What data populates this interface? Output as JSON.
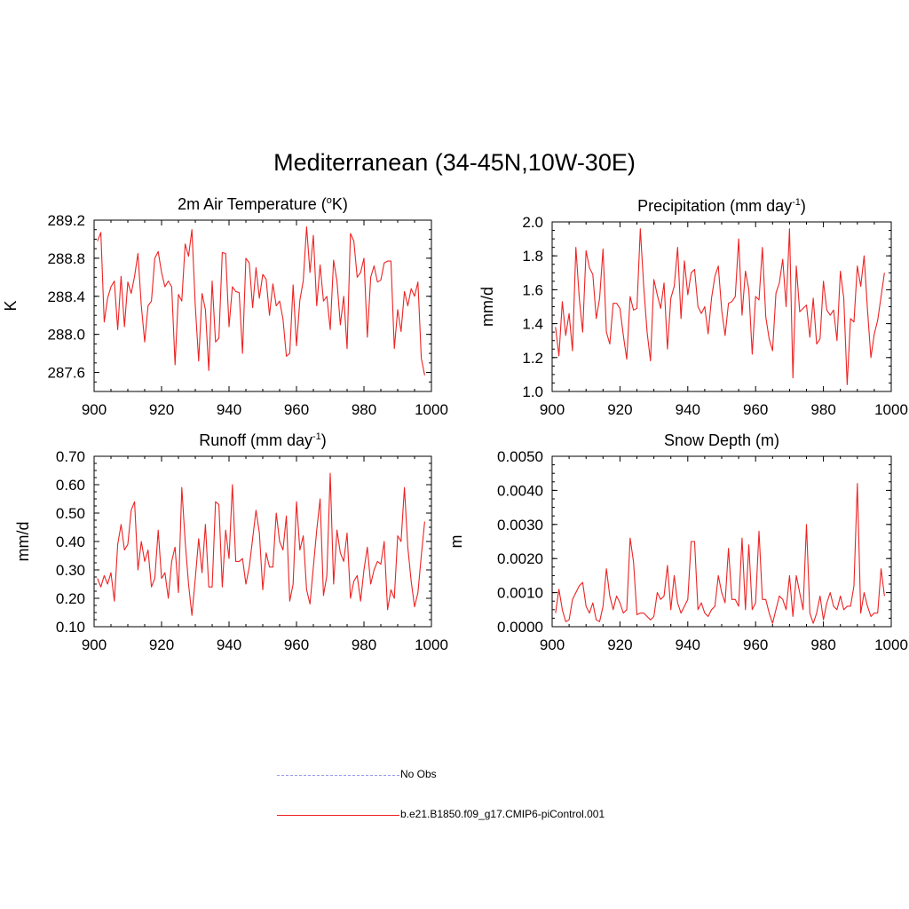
{
  "figure": {
    "title": "Mediterranean (34-45N,10W-30E)"
  },
  "legend": {
    "obs_label": "No Obs",
    "model_label": "b.e21.B1850.f09_g17.CMIP6-piControl.001",
    "obs_color": "#9a9aee",
    "model_color": "#ee2222"
  },
  "chart_data": [
    {
      "id": "temperature",
      "type": "line",
      "title": "2m Air Temperature (°K)",
      "title_main": "2m Air Temperature (",
      "title_sup": "o",
      "title_end": "K)",
      "xlabel": "",
      "ylabel": "K",
      "xlim": [
        900,
        1000
      ],
      "ylim": [
        287.4,
        289.2
      ],
      "xticks": [
        900,
        920,
        940,
        960,
        980,
        1000
      ],
      "yticks": [
        287.6,
        288.0,
        288.4,
        288.8,
        289.2
      ],
      "ytick_labels": [
        "287.6",
        "288.0",
        "288.4",
        "288.8",
        "289.2"
      ],
      "series": [
        {
          "name": "b.e21.B1850.f09_g17.CMIP6-piControl.001",
          "x_start": 901,
          "values": [
            288.98,
            289.07,
            288.13,
            288.38,
            288.5,
            288.56,
            288.05,
            288.61,
            288.08,
            288.55,
            288.43,
            288.61,
            288.85,
            288.3,
            287.92,
            288.3,
            288.35,
            288.8,
            288.87,
            288.65,
            288.5,
            288.56,
            288.5,
            287.68,
            288.42,
            288.35,
            288.95,
            288.82,
            289.1,
            288.3,
            287.72,
            288.43,
            288.26,
            287.62,
            288.56,
            287.92,
            287.96,
            288.86,
            288.85,
            288.08,
            288.5,
            288.45,
            288.44,
            287.8,
            288.8,
            288.75,
            288.28,
            288.7,
            288.38,
            288.63,
            288.58,
            288.2,
            288.53,
            288.3,
            288.35,
            288.16,
            287.77,
            287.8,
            288.52,
            287.88,
            288.36,
            288.56,
            289.13,
            288.65,
            289.04,
            288.3,
            288.73,
            288.35,
            288.4,
            288.05,
            288.78,
            288.56,
            288.1,
            288.4,
            287.85,
            289.06,
            288.98,
            288.6,
            288.65,
            288.8,
            287.97,
            288.6,
            288.72,
            288.55,
            288.57,
            288.75,
            288.77,
            288.77,
            287.85,
            288.26,
            288.03,
            288.45,
            288.3,
            288.48,
            288.4,
            288.55,
            287.75,
            287.57
          ]
        }
      ]
    },
    {
      "id": "precipitation",
      "type": "line",
      "title": "Precipitation (mm day-1)",
      "title_main": "Precipitation (mm day",
      "title_sup": "-1",
      "title_end": ")",
      "xlabel": "",
      "ylabel": "mm/d",
      "xlim": [
        900,
        1000
      ],
      "ylim": [
        1.0,
        2.0
      ],
      "xticks": [
        900,
        920,
        940,
        960,
        980,
        1000
      ],
      "yticks": [
        1.0,
        1.2,
        1.4,
        1.6,
        1.8,
        2.0
      ],
      "ytick_labels": [
        "1.0",
        "1.2",
        "1.4",
        "1.6",
        "1.8",
        "2.0"
      ],
      "series": [
        {
          "name": "b.e21.B1850.f09_g17.CMIP6-piControl.001",
          "x_start": 901,
          "values": [
            1.38,
            1.21,
            1.53,
            1.33,
            1.46,
            1.24,
            1.85,
            1.55,
            1.35,
            1.83,
            1.73,
            1.69,
            1.43,
            1.55,
            1.84,
            1.35,
            1.28,
            1.52,
            1.52,
            1.49,
            1.33,
            1.19,
            1.56,
            1.48,
            1.49,
            1.96,
            1.62,
            1.35,
            1.18,
            1.66,
            1.57,
            1.49,
            1.64,
            1.25,
            1.55,
            1.62,
            1.85,
            1.43,
            1.77,
            1.57,
            1.7,
            1.72,
            1.5,
            1.46,
            1.5,
            1.34,
            1.55,
            1.68,
            1.74,
            1.48,
            1.33,
            1.52,
            1.53,
            1.56,
            1.9,
            1.45,
            1.71,
            1.6,
            1.22,
            1.56,
            1.54,
            1.85,
            1.44,
            1.31,
            1.24,
            1.58,
            1.64,
            1.78,
            1.5,
            1.96,
            1.08,
            1.74,
            1.47,
            1.49,
            1.51,
            1.32,
            1.55,
            1.28,
            1.31,
            1.65,
            1.48,
            1.45,
            1.48,
            1.3,
            1.71,
            1.55,
            1.04,
            1.43,
            1.41,
            1.74,
            1.62,
            1.8,
            1.48,
            1.2,
            1.34,
            1.42,
            1.56,
            1.7
          ]
        }
      ]
    },
    {
      "id": "runoff",
      "type": "line",
      "title": "Runoff (mm day-1)",
      "title_main": "Runoff (mm day",
      "title_sup": "-1",
      "title_end": ")",
      "xlabel": "",
      "ylabel": "mm/d",
      "xlim": [
        900,
        1000
      ],
      "ylim": [
        0.1,
        0.7
      ],
      "xticks": [
        900,
        920,
        940,
        960,
        980,
        1000
      ],
      "yticks": [
        0.1,
        0.2,
        0.3,
        0.4,
        0.5,
        0.6,
        0.7
      ],
      "ytick_labels": [
        "0.10",
        "0.20",
        "0.30",
        "0.40",
        "0.50",
        "0.60",
        "0.70"
      ],
      "series": [
        {
          "name": "b.e21.B1850.f09_g17.CMIP6-piControl.001",
          "x_start": 901,
          "values": [
            0.27,
            0.24,
            0.28,
            0.25,
            0.29,
            0.19,
            0.39,
            0.46,
            0.37,
            0.39,
            0.51,
            0.54,
            0.3,
            0.4,
            0.33,
            0.37,
            0.24,
            0.27,
            0.44,
            0.27,
            0.29,
            0.2,
            0.33,
            0.38,
            0.22,
            0.59,
            0.4,
            0.25,
            0.14,
            0.27,
            0.41,
            0.29,
            0.46,
            0.24,
            0.24,
            0.54,
            0.53,
            0.24,
            0.44,
            0.34,
            0.6,
            0.33,
            0.33,
            0.34,
            0.25,
            0.31,
            0.41,
            0.51,
            0.43,
            0.23,
            0.36,
            0.31,
            0.31,
            0.5,
            0.4,
            0.37,
            0.49,
            0.19,
            0.25,
            0.54,
            0.37,
            0.42,
            0.23,
            0.18,
            0.31,
            0.44,
            0.55,
            0.21,
            0.28,
            0.64,
            0.25,
            0.44,
            0.36,
            0.33,
            0.43,
            0.2,
            0.26,
            0.28,
            0.19,
            0.3,
            0.38,
            0.25,
            0.3,
            0.33,
            0.32,
            0.4,
            0.16,
            0.23,
            0.2,
            0.42,
            0.4,
            0.59,
            0.38,
            0.26,
            0.17,
            0.22,
            0.35,
            0.47
          ]
        }
      ]
    },
    {
      "id": "snow_depth",
      "type": "line",
      "title": "Snow Depth (m)",
      "title_main": "Snow Depth (m)",
      "title_sup": "",
      "title_end": "",
      "xlabel": "",
      "ylabel": "m",
      "xlim": [
        900,
        1000
      ],
      "ylim": [
        0.0,
        0.005
      ],
      "xticks": [
        900,
        920,
        940,
        960,
        980,
        1000
      ],
      "yticks": [
        0.0,
        0.001,
        0.002,
        0.003,
        0.004,
        0.005
      ],
      "ytick_labels": [
        "0.0000",
        "0.0010",
        "0.0020",
        "0.0030",
        "0.0040",
        "0.0050"
      ],
      "series": [
        {
          "name": "b.e21.B1850.f09_g17.CMIP6-piControl.001",
          "x_start": 901,
          "values": [
            0.0004,
            0.0011,
            0.0005,
            0.00015,
            0.0002,
            0.0008,
            0.001,
            0.0012,
            0.0013,
            0.0006,
            0.0004,
            0.0007,
            0.0002,
            0.00015,
            0.0006,
            0.0017,
            0.0009,
            0.0005,
            0.0009,
            0.0007,
            0.0004,
            0.0005,
            0.0026,
            0.0019,
            0.00035,
            0.0004,
            0.0004,
            0.0003,
            0.0002,
            0.0003,
            0.001,
            0.0008,
            0.0009,
            0.0018,
            0.0005,
            0.0015,
            0.0007,
            0.0004,
            0.0006,
            0.0008,
            0.0025,
            0.0025,
            0.0005,
            0.0007,
            0.0004,
            0.0003,
            0.0005,
            0.0006,
            0.0015,
            0.001,
            0.0007,
            0.0023,
            0.0008,
            0.0008,
            0.0006,
            0.0026,
            0.0005,
            0.0024,
            0.0005,
            0.0007,
            0.0028,
            0.0008,
            0.0008,
            0.0004,
            0.0001,
            0.0005,
            0.0009,
            0.0008,
            0.0005,
            0.0015,
            0.0003,
            0.0015,
            0.001,
            0.0005,
            0.003,
            0.0004,
            0.0001,
            0.0004,
            0.0009,
            0.0002,
            0.0007,
            0.001,
            0.0006,
            0.0005,
            0.0009,
            0.0005,
            0.0006,
            0.0006,
            0.0012,
            0.0042,
            0.0004,
            0.001,
            0.0006,
            0.0003,
            0.0004,
            0.0004,
            0.0017,
            0.0009
          ]
        }
      ]
    }
  ]
}
